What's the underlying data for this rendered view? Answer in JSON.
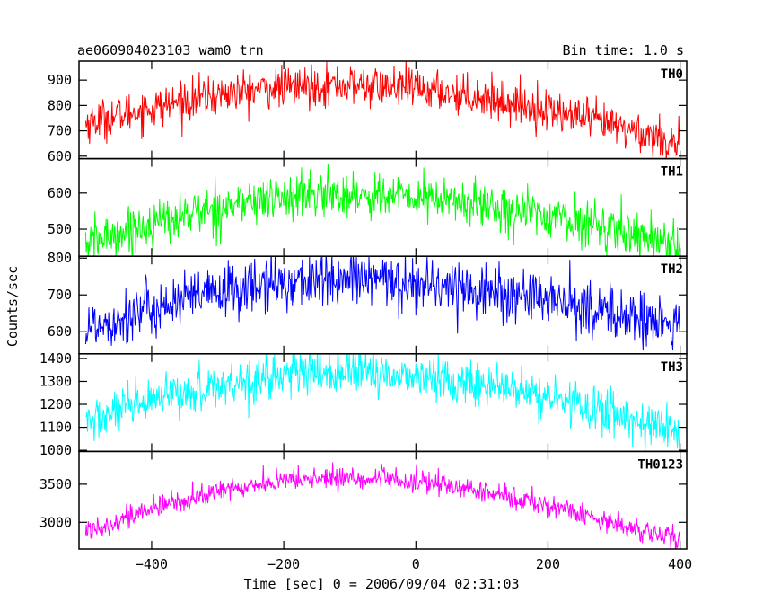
{
  "chart_data": {
    "type": "line",
    "title_left": "ae060904023103_wam0_trn",
    "title_right": "Bin time: 1.0 s",
    "xlabel": "Time [sec] 0 = 2006/09/04 02:31:03",
    "ylabel": "Counts/sec",
    "xlim": [
      -510,
      410
    ],
    "x_ticks": [
      -400,
      -200,
      0,
      200,
      400
    ],
    "x_tick_labels": [
      "−400",
      "−200",
      "0",
      "200",
      "400"
    ],
    "x_range": [
      -500,
      400
    ],
    "peak_x": -120,
    "series": [
      {
        "name": "TH0",
        "color": "#ff0000",
        "ylim": [
          590,
          975
        ],
        "y_ticks": [
          600,
          700,
          800,
          900
        ],
        "y_tick_labels": [
          "600",
          "700",
          "800",
          "900"
        ],
        "start": 730,
        "peak": 880,
        "end": 650,
        "noise": 40
      },
      {
        "name": "TH1",
        "color": "#00ff00",
        "ylim": [
          425,
          695
        ],
        "y_ticks": [
          500,
          600
        ],
        "y_tick_labels": [
          "500",
          "600"
        ],
        "start": 460,
        "peak": 595,
        "end": 460,
        "noise": 32
      },
      {
        "name": "TH2",
        "color": "#0000ff",
        "ylim": [
          540,
          805
        ],
        "y_ticks": [
          600,
          700,
          800
        ],
        "y_tick_labels": [
          "600",
          "700",
          "800"
        ],
        "start": 610,
        "peak": 740,
        "end": 610,
        "noise": 38
      },
      {
        "name": "TH3",
        "color": "#00ffff",
        "ylim": [
          995,
          1420
        ],
        "y_ticks": [
          1000,
          1100,
          1200,
          1300,
          1400
        ],
        "y_tick_labels": [
          "1000",
          "1100",
          "1200",
          "1300",
          "1400"
        ],
        "start": 1120,
        "peak": 1340,
        "end": 1080,
        "noise": 50
      },
      {
        "name": "TH0123",
        "color": "#ff00ff",
        "ylim": [
          2650,
          3930
        ],
        "y_ticks": [
          3000,
          3500
        ],
        "y_tick_labels": [
          "3000",
          "3500"
        ],
        "start": 2890,
        "peak": 3580,
        "end": 2750,
        "noise": 75
      }
    ]
  }
}
